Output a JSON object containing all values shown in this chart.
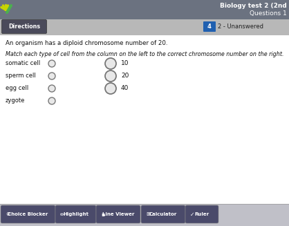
{
  "bg_color": "#c8c8c8",
  "header_bg": "#6b7280",
  "content_bg": "#f0f0f0",
  "footer_bg": "#c8c8c8",
  "title_text": "Biology test 2 (2nd",
  "subtitle_text": "Questions 1",
  "directions_btn_text": "Directions",
  "directions_btn_bg": "#4a4a5a",
  "nav_number": "4",
  "nav_label": "2 - Unanswered",
  "nav_bg": "#2060b0",
  "question_text": "An organism has a diploid chromosome number of 20.",
  "instruction_text": "Match each type of cell from the column on the left to the correct chromosome number on the right.",
  "left_items": [
    "somatic cell",
    "sperm cell",
    "egg cell",
    "zygote"
  ],
  "right_items": [
    "10",
    "20",
    "40"
  ],
  "footer_btn_color": "#4a4a6a",
  "footer_items": [
    "Choice Blocker",
    "Highlight",
    "Line Viewer",
    "Calculator",
    "Ruler"
  ],
  "left_circle_r": 5,
  "right_circle_r": 8,
  "circle_color": "#888888"
}
